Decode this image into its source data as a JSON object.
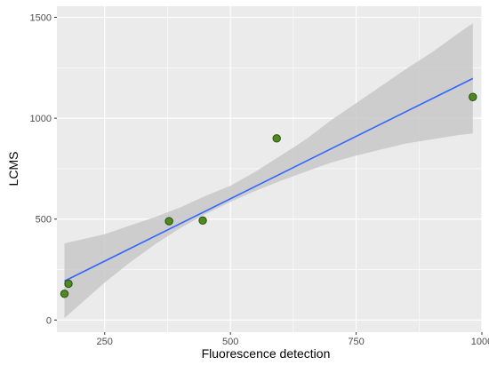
{
  "chart_data": {
    "type": "scatter",
    "title": "",
    "xlabel": "Fluorescence detection",
    "ylabel": "LCMS",
    "xlim": [
      155,
      1000
    ],
    "ylim": [
      -60,
      1555
    ],
    "x_ticks": [
      250,
      500,
      750,
      1000
    ],
    "y_ticks": [
      0,
      500,
      1000,
      1500
    ],
    "grid": true,
    "legend": "none",
    "points": [
      {
        "x": 170,
        "y": 130
      },
      {
        "x": 178,
        "y": 180
      },
      {
        "x": 378,
        "y": 490
      },
      {
        "x": 445,
        "y": 493
      },
      {
        "x": 592,
        "y": 900
      },
      {
        "x": 982,
        "y": 1105
      }
    ],
    "fit_line": {
      "x": [
        170,
        982
      ],
      "y": [
        193,
        1197
      ]
    },
    "confidence_band": {
      "x": [
        170,
        250,
        300,
        350,
        400,
        450,
        500,
        550,
        600,
        650,
        700,
        750,
        800,
        850,
        900,
        950,
        982
      ],
      "lower": [
        10,
        185,
        285,
        375,
        455,
        525,
        585,
        640,
        690,
        735,
        780,
        815,
        845,
        875,
        895,
        915,
        925
      ],
      "upper": [
        380,
        425,
        468,
        510,
        558,
        615,
        665,
        735,
        815,
        895,
        990,
        1075,
        1160,
        1245,
        1325,
        1415,
        1470
      ]
    },
    "colors": {
      "panel_bg": "#ebebeb",
      "grid": "#ffffff",
      "band": "#c8c8c8",
      "line": "#3366ff",
      "point_fill": "#4f8a1e",
      "point_stroke": "#2b4a12"
    }
  }
}
